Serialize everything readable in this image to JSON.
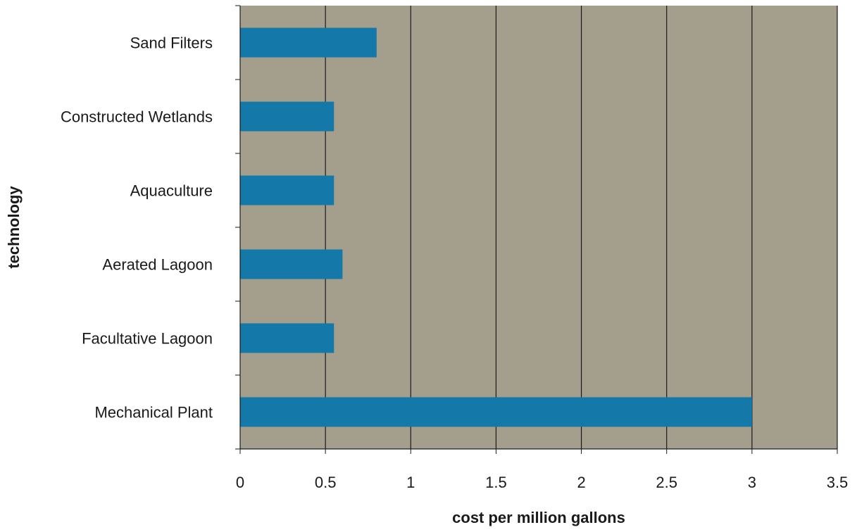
{
  "chart_data": {
    "type": "bar",
    "orientation": "horizontal",
    "categories": [
      "Mechanical Plant",
      "Facultative Lagoon",
      "Aerated Lagoon",
      "Aquaculture",
      "Constructed Wetlands",
      "Sand Filters"
    ],
    "values": [
      3.0,
      0.55,
      0.6,
      0.55,
      0.55,
      0.8
    ],
    "xlabel": "cost per million gallons",
    "ylabel": "technology",
    "xlim": [
      0,
      3.5
    ],
    "xticks": [
      "0",
      "0.5",
      "1",
      "1.5",
      "2",
      "2.5",
      "3",
      "3.5"
    ],
    "grid": "vertical",
    "legend": "none",
    "colors": {
      "bar": "#1478a8",
      "plot_background": "#a39f8c",
      "grid": "#1a1a1a"
    }
  }
}
